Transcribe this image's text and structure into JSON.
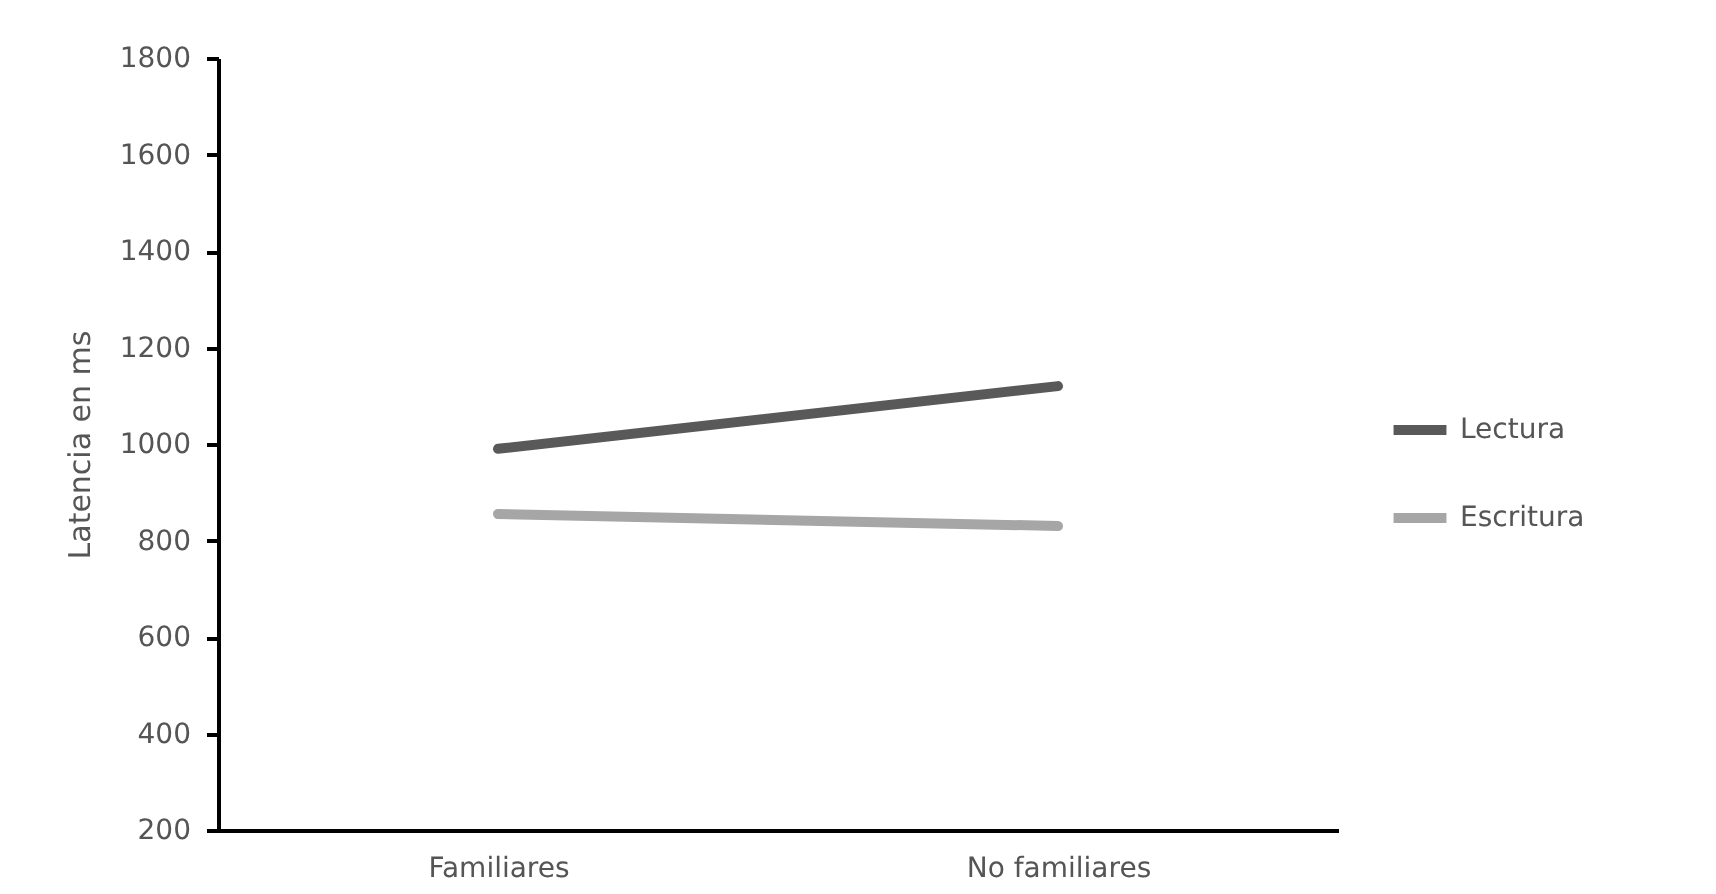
{
  "chart_data": {
    "type": "line",
    "ylabel": "Latencia en ms",
    "categories": [
      "Familiares",
      "No familiares"
    ],
    "series": [
      {
        "name": "Lectura",
        "color": "#595959",
        "values": [
          990,
          1120
        ]
      },
      {
        "name": "Escritura",
        "color": "#a6a6a6",
        "values": [
          855,
          830
        ]
      }
    ],
    "ylim": [
      200,
      1800
    ],
    "yticks": [
      200,
      400,
      600,
      800,
      1000,
      1200,
      1400,
      1600,
      1800
    ],
    "grid": false,
    "legend": "right",
    "marker": "none",
    "line_style": "solid"
  }
}
